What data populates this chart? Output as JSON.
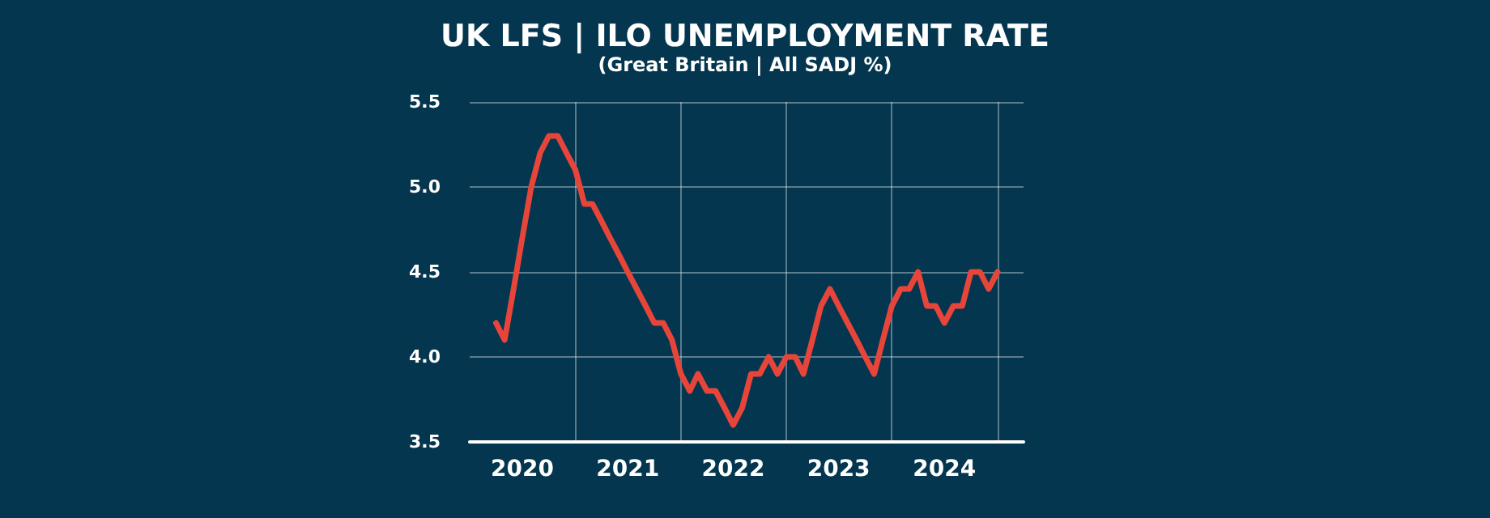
{
  "chart_data": {
    "type": "line",
    "title": "UK LFS | ILO UNEMPLOYMENT RATE",
    "subtitle": "(Great Britain | All SADJ %)",
    "x": [
      "2020-04",
      "2020-05",
      "2020-06",
      "2020-07",
      "2020-08",
      "2020-09",
      "2020-10",
      "2020-11",
      "2020-12",
      "2021-01",
      "2021-02",
      "2021-03",
      "2021-04",
      "2021-05",
      "2021-06",
      "2021-07",
      "2021-08",
      "2021-09",
      "2021-10",
      "2021-11",
      "2021-12",
      "2022-01",
      "2022-02",
      "2022-03",
      "2022-04",
      "2022-05",
      "2022-06",
      "2022-07",
      "2022-08",
      "2022-09",
      "2022-10",
      "2022-11",
      "2022-12",
      "2023-01",
      "2023-02",
      "2023-03",
      "2023-04",
      "2023-05",
      "2023-06",
      "2023-07",
      "2023-08",
      "2023-09",
      "2023-10",
      "2023-11",
      "2023-12",
      "2024-01",
      "2024-02",
      "2024-03",
      "2024-04",
      "2024-05",
      "2024-06",
      "2024-07",
      "2024-08",
      "2024-09",
      "2024-10",
      "2024-11",
      "2024-12",
      "2025-01"
    ],
    "series": [
      {
        "color": "#e8453a",
        "values": [
          4.2,
          4.1,
          4.4,
          4.7,
          5.0,
          5.2,
          5.3,
          5.3,
          5.2,
          5.1,
          4.9,
          4.9,
          4.8,
          4.7,
          4.6,
          4.5,
          4.4,
          4.3,
          4.2,
          4.2,
          4.1,
          3.9,
          3.8,
          3.9,
          3.8,
          3.8,
          3.7,
          3.6,
          3.7,
          3.9,
          3.9,
          4.0,
          3.9,
          4.0,
          4.0,
          3.9,
          4.1,
          4.3,
          4.4,
          4.3,
          4.2,
          4.1,
          4.0,
          3.9,
          4.1,
          4.3,
          4.4,
          4.4,
          4.5,
          4.3,
          4.3,
          4.2,
          4.3,
          4.3,
          4.5,
          4.5,
          4.4,
          4.5
        ]
      }
    ],
    "xlim": [
      "2020-01",
      "2025-04"
    ],
    "xticks": [
      {
        "value": "2020-07",
        "label": "2020"
      },
      {
        "value": "2021-07",
        "label": "2021"
      },
      {
        "value": "2022-07",
        "label": "2022"
      },
      {
        "value": "2023-07",
        "label": "2023"
      },
      {
        "value": "2024-07",
        "label": "2024"
      },
      {
        "value": "2021-01",
        "label": null
      },
      {
        "value": "2022-01",
        "label": null
      },
      {
        "value": "2023-01",
        "label": null
      },
      {
        "value": "2024-01",
        "label": null
      },
      {
        "value": "2025-01",
        "label": null
      }
    ],
    "ylim": [
      3.5,
      5.5
    ],
    "yticks": [
      {
        "value": 3.5,
        "label": "3.5"
      },
      {
        "value": 4,
        "label": "4.0"
      },
      {
        "value": 4.5,
        "label": "4.5"
      },
      {
        "value": 5,
        "label": "5.0"
      },
      {
        "value": 5.5,
        "label": "5.5"
      }
    ],
    "grid": true,
    "marker": "none",
    "line_style": "solid"
  }
}
